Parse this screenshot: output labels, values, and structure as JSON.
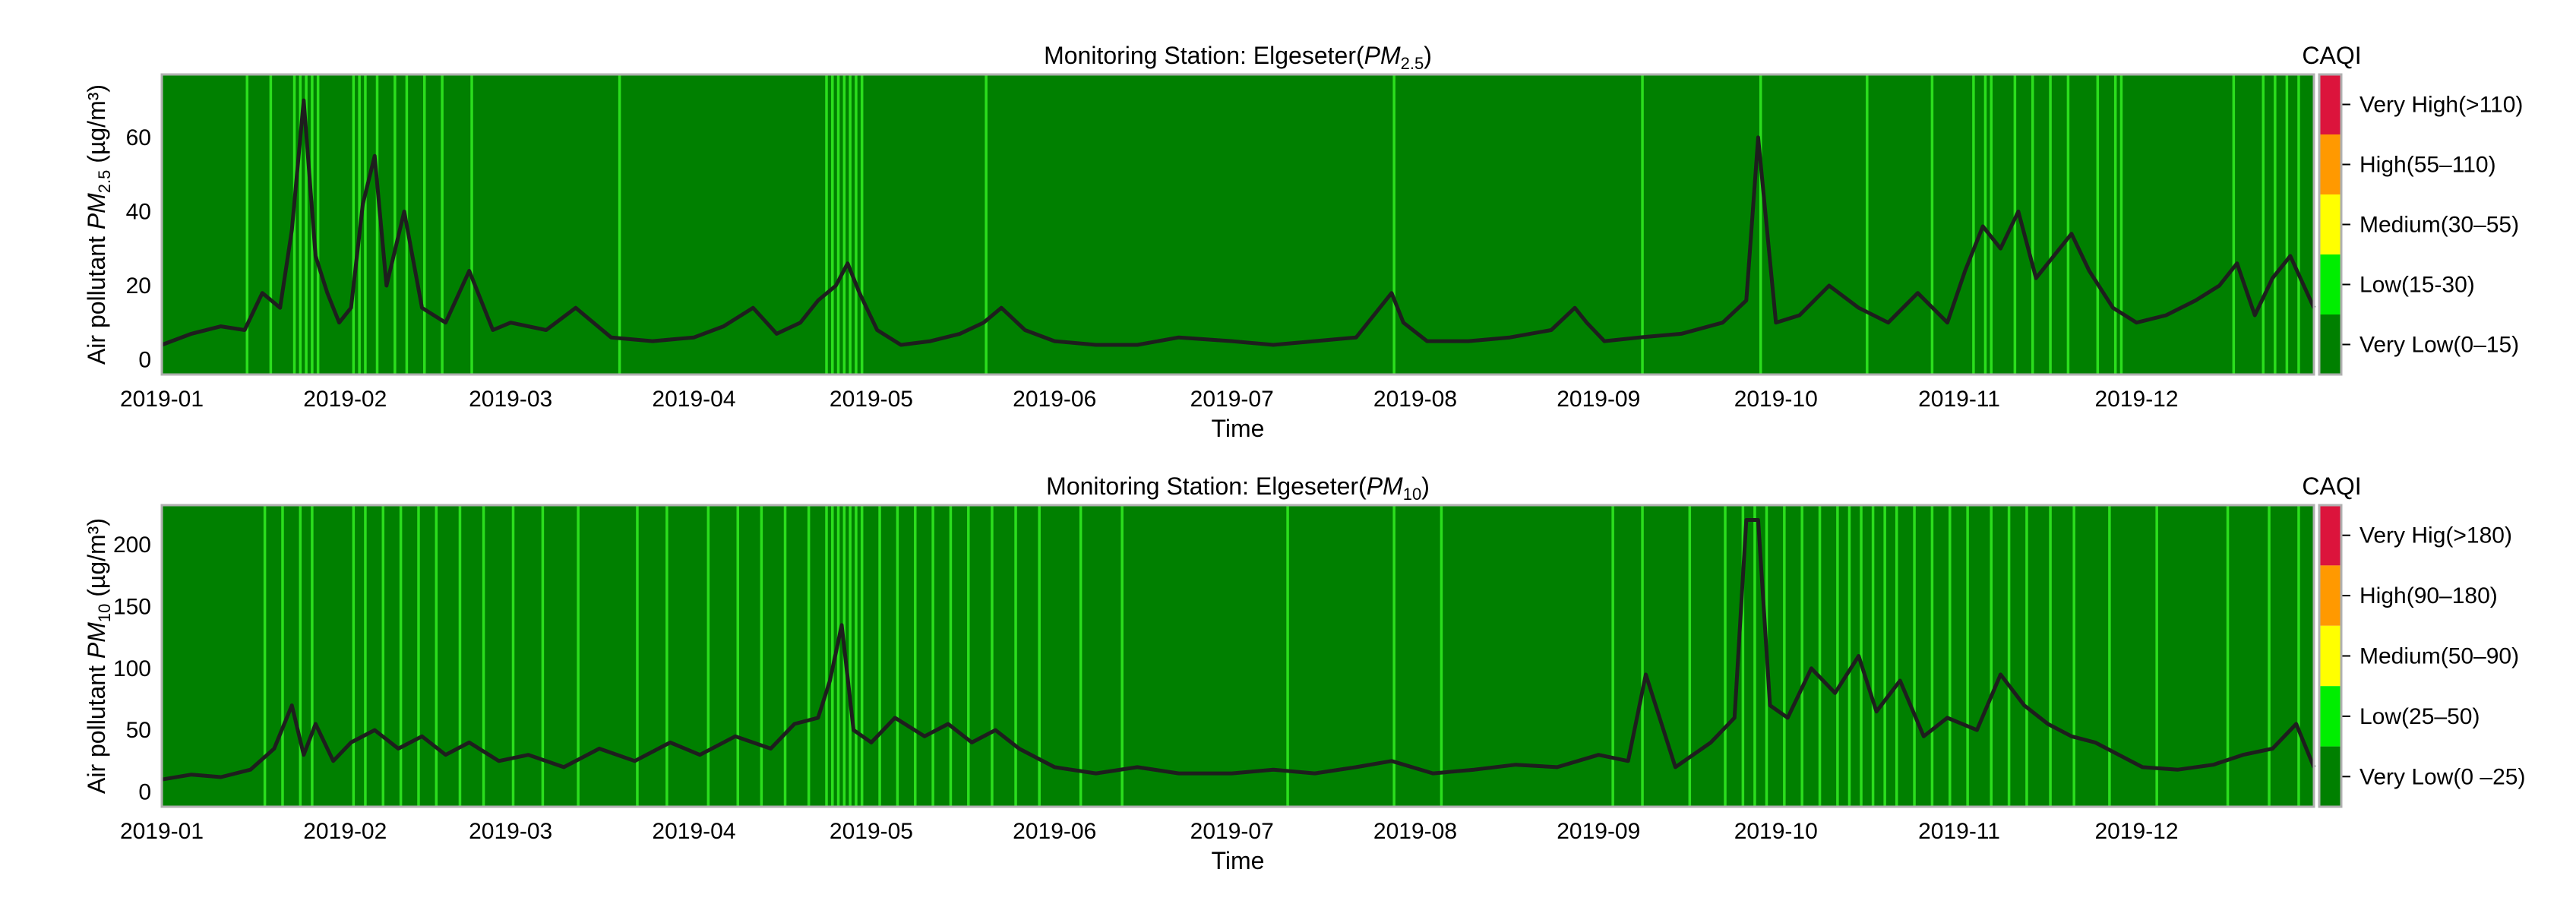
{
  "chart_data": [
    {
      "type": "line",
      "title_prefix": "Monitoring Station: Elgeseter(",
      "title_var": "PM",
      "title_sub": "2.5",
      "title_suffix": ")",
      "ylabel_prefix": "Air pollutant ",
      "ylabel_var": "PM",
      "ylabel_sub": "2.5",
      "ylabel_unit": " (µg/m³)",
      "xlabel": "Time",
      "xlim": [
        "2019-01-01",
        "2019-12-31"
      ],
      "ylim": [
        -4,
        77
      ],
      "yticks": [
        0,
        20,
        40,
        60
      ],
      "xticks": [
        "2019-01",
        "2019-02",
        "2019-03",
        "2019-04",
        "2019-05",
        "2019-06",
        "2019-07",
        "2019-08",
        "2019-09",
        "2019-10",
        "2019-11",
        "2019-12"
      ],
      "grid": false,
      "line_color": "#1e1e1e",
      "series": [
        {
          "x": [
            "2019-01-01",
            "2019-01-06",
            "2019-01-11",
            "2019-01-15",
            "2019-01-18",
            "2019-01-21",
            "2019-01-23",
            "2019-01-25",
            "2019-01-27",
            "2019-01-29",
            "2019-01-31",
            "2019-02-02",
            "2019-02-04",
            "2019-02-06",
            "2019-02-08",
            "2019-02-11",
            "2019-02-14",
            "2019-02-18",
            "2019-02-22",
            "2019-02-26",
            "2019-03-01",
            "2019-03-07",
            "2019-03-12",
            "2019-03-18",
            "2019-03-25",
            "2019-04-01",
            "2019-04-06",
            "2019-04-11",
            "2019-04-15",
            "2019-04-19",
            "2019-04-22",
            "2019-04-25",
            "2019-04-27",
            "2019-04-29",
            "2019-05-02",
            "2019-05-06",
            "2019-05-11",
            "2019-05-16",
            "2019-05-20",
            "2019-05-23",
            "2019-05-27",
            "2019-06-01",
            "2019-06-08",
            "2019-06-15",
            "2019-06-22",
            "2019-07-01",
            "2019-07-08",
            "2019-07-15",
            "2019-07-22",
            "2019-07-26",
            "2019-07-28",
            "2019-07-30",
            "2019-08-03",
            "2019-08-10",
            "2019-08-17",
            "2019-08-24",
            "2019-08-28",
            "2019-08-30",
            "2019-09-02",
            "2019-09-08",
            "2019-09-15",
            "2019-09-22",
            "2019-09-26",
            "2019-09-28",
            "2019-10-01",
            "2019-10-05",
            "2019-10-10",
            "2019-10-15",
            "2019-10-20",
            "2019-10-25",
            "2019-10-30",
            "2019-11-02",
            "2019-11-05",
            "2019-11-08",
            "2019-11-11",
            "2019-11-14",
            "2019-11-17",
            "2019-11-20",
            "2019-11-23",
            "2019-11-27",
            "2019-12-01",
            "2019-12-06",
            "2019-12-11",
            "2019-12-15",
            "2019-12-18",
            "2019-12-21",
            "2019-12-24",
            "2019-12-27",
            "2019-12-31"
          ],
          "y": [
            4,
            7,
            9,
            8,
            18,
            14,
            35,
            70,
            28,
            18,
            10,
            14,
            42,
            55,
            20,
            40,
            14,
            10,
            24,
            8,
            10,
            8,
            14,
            6,
            5,
            6,
            9,
            14,
            7,
            10,
            16,
            20,
            26,
            18,
            8,
            4,
            5,
            7,
            10,
            14,
            8,
            5,
            4,
            4,
            6,
            5,
            4,
            5,
            6,
            14,
            18,
            10,
            5,
            5,
            6,
            8,
            14,
            10,
            5,
            6,
            7,
            10,
            16,
            60,
            10,
            12,
            20,
            14,
            10,
            18,
            10,
            24,
            36,
            30,
            40,
            22,
            28,
            34,
            24,
            14,
            10,
            12,
            16,
            20,
            26,
            12,
            22,
            28,
            14
          ]
        }
      ],
      "legend": {
        "title": "CAQI",
        "entries": [
          {
            "label": "Very High(>110)",
            "color": "#dc143c"
          },
          {
            "label": "High(55–110)",
            "color": "#ff9900"
          },
          {
            "label": "Medium(30–55)",
            "color": "#ffff00"
          },
          {
            "label": "Low(15-30)",
            "color": "#00ee00"
          },
          {
            "label": "Very Low(0–15)",
            "color": "#008000"
          }
        ]
      },
      "background_color": "#008000",
      "band_days": [
        "2019-01-15",
        "2019-01-19",
        "2019-01-23",
        "2019-01-24",
        "2019-01-25",
        "2019-01-26",
        "2019-01-27",
        "2019-02-02",
        "2019-02-03",
        "2019-02-04",
        "2019-02-06",
        "2019-02-09",
        "2019-02-11",
        "2019-02-14",
        "2019-02-17",
        "2019-02-22",
        "2019-03-19",
        "2019-04-23",
        "2019-04-24",
        "2019-04-25",
        "2019-04-26",
        "2019-04-27",
        "2019-04-28",
        "2019-04-29",
        "2019-05-20",
        "2019-07-28",
        "2019-09-08",
        "2019-09-28",
        "2019-10-16",
        "2019-10-27",
        "2019-11-03",
        "2019-11-05",
        "2019-11-06",
        "2019-11-10",
        "2019-11-13",
        "2019-11-16",
        "2019-11-19",
        "2019-11-24",
        "2019-11-27",
        "2019-11-28",
        "2019-12-17",
        "2019-12-22",
        "2019-12-24",
        "2019-12-26",
        "2019-12-28"
      ]
    },
    {
      "type": "line",
      "title_prefix": "Monitoring Station: Elgeseter(",
      "title_var": "PM",
      "title_sub": "10",
      "title_suffix": ")",
      "ylabel_prefix": "Air pollutant ",
      "ylabel_var": "PM",
      "ylabel_sub": "10",
      "ylabel_unit": " (µg/m³)",
      "xlabel": "Time",
      "xlim": [
        "2019-01-01",
        "2019-12-31"
      ],
      "ylim": [
        -12,
        232
      ],
      "yticks": [
        0,
        50,
        100,
        150,
        200
      ],
      "xticks": [
        "2019-01",
        "2019-02",
        "2019-03",
        "2019-04",
        "2019-05",
        "2019-06",
        "2019-07",
        "2019-08",
        "2019-09",
        "2019-10",
        "2019-11",
        "2019-12"
      ],
      "grid": false,
      "line_color": "#1e1e1e",
      "series": [
        {
          "x": [
            "2019-01-01",
            "2019-01-06",
            "2019-01-11",
            "2019-01-16",
            "2019-01-20",
            "2019-01-23",
            "2019-01-25",
            "2019-01-27",
            "2019-01-30",
            "2019-02-02",
            "2019-02-06",
            "2019-02-10",
            "2019-02-14",
            "2019-02-18",
            "2019-02-22",
            "2019-02-27",
            "2019-03-04",
            "2019-03-10",
            "2019-03-16",
            "2019-03-22",
            "2019-03-28",
            "2019-04-02",
            "2019-04-08",
            "2019-04-14",
            "2019-04-18",
            "2019-04-22",
            "2019-04-24",
            "2019-04-26",
            "2019-04-28",
            "2019-05-01",
            "2019-05-05",
            "2019-05-10",
            "2019-05-14",
            "2019-05-18",
            "2019-05-22",
            "2019-05-26",
            "2019-06-01",
            "2019-06-08",
            "2019-06-15",
            "2019-06-22",
            "2019-07-01",
            "2019-07-08",
            "2019-07-15",
            "2019-07-22",
            "2019-07-28",
            "2019-08-04",
            "2019-08-11",
            "2019-08-18",
            "2019-08-25",
            "2019-09-01",
            "2019-09-06",
            "2019-09-09",
            "2019-09-14",
            "2019-09-20",
            "2019-09-24",
            "2019-09-26",
            "2019-09-28",
            "2019-09-30",
            "2019-10-03",
            "2019-10-07",
            "2019-10-11",
            "2019-10-15",
            "2019-10-18",
            "2019-10-22",
            "2019-10-26",
            "2019-10-30",
            "2019-11-04",
            "2019-11-08",
            "2019-11-12",
            "2019-11-16",
            "2019-11-20",
            "2019-11-24",
            "2019-11-28",
            "2019-12-02",
            "2019-12-08",
            "2019-12-14",
            "2019-12-19",
            "2019-12-24",
            "2019-12-28",
            "2019-12-31"
          ],
          "y": [
            10,
            14,
            12,
            18,
            35,
            70,
            30,
            55,
            25,
            40,
            50,
            35,
            45,
            30,
            40,
            25,
            30,
            20,
            35,
            25,
            40,
            30,
            45,
            35,
            55,
            60,
            90,
            135,
            50,
            40,
            60,
            45,
            55,
            40,
            50,
            35,
            20,
            15,
            20,
            15,
            15,
            18,
            15,
            20,
            25,
            15,
            18,
            22,
            20,
            30,
            25,
            95,
            20,
            40,
            60,
            220,
            220,
            70,
            60,
            100,
            80,
            110,
            65,
            90,
            45,
            60,
            50,
            95,
            70,
            55,
            45,
            40,
            30,
            20,
            18,
            22,
            30,
            35,
            55,
            20
          ]
        }
      ],
      "legend": {
        "title": "CAQI",
        "entries": [
          {
            "label": "Very Hig(>180)",
            "color": "#dc143c"
          },
          {
            "label": "High(90–180)",
            "color": "#ff9900"
          },
          {
            "label": "Medium(50–90)",
            "color": "#ffff00"
          },
          {
            "label": "Low(25–50)",
            "color": "#00ee00"
          },
          {
            "label": "Very Low(0 –25)",
            "color": "#008000"
          }
        ]
      },
      "background_color": "#008000",
      "band_days": [
        "2019-01-18",
        "2019-01-21",
        "2019-01-24",
        "2019-01-26",
        "2019-02-02",
        "2019-02-04",
        "2019-02-07",
        "2019-02-10",
        "2019-02-13",
        "2019-02-16",
        "2019-02-20",
        "2019-02-24",
        "2019-03-01",
        "2019-03-06",
        "2019-03-12",
        "2019-03-22",
        "2019-03-27",
        "2019-04-03",
        "2019-04-08",
        "2019-04-12",
        "2019-04-16",
        "2019-04-20",
        "2019-04-23",
        "2019-04-24",
        "2019-04-25",
        "2019-04-26",
        "2019-04-27",
        "2019-04-28",
        "2019-04-29",
        "2019-05-02",
        "2019-05-05",
        "2019-05-08",
        "2019-05-11",
        "2019-05-14",
        "2019-05-17",
        "2019-05-21",
        "2019-05-25",
        "2019-05-29",
        "2019-06-05",
        "2019-06-12",
        "2019-07-10",
        "2019-07-28",
        "2019-08-05",
        "2019-09-03",
        "2019-09-08",
        "2019-09-16",
        "2019-09-22",
        "2019-09-25",
        "2019-09-27",
        "2019-09-29",
        "2019-10-02",
        "2019-10-05",
        "2019-10-08",
        "2019-10-11",
        "2019-10-13",
        "2019-10-15",
        "2019-10-17",
        "2019-10-19",
        "2019-10-21",
        "2019-10-24",
        "2019-10-27",
        "2019-10-30",
        "2019-11-02",
        "2019-11-06",
        "2019-11-09",
        "2019-11-12",
        "2019-11-16",
        "2019-11-20",
        "2019-11-26",
        "2019-12-04",
        "2019-12-16",
        "2019-12-23",
        "2019-12-28"
      ]
    }
  ]
}
